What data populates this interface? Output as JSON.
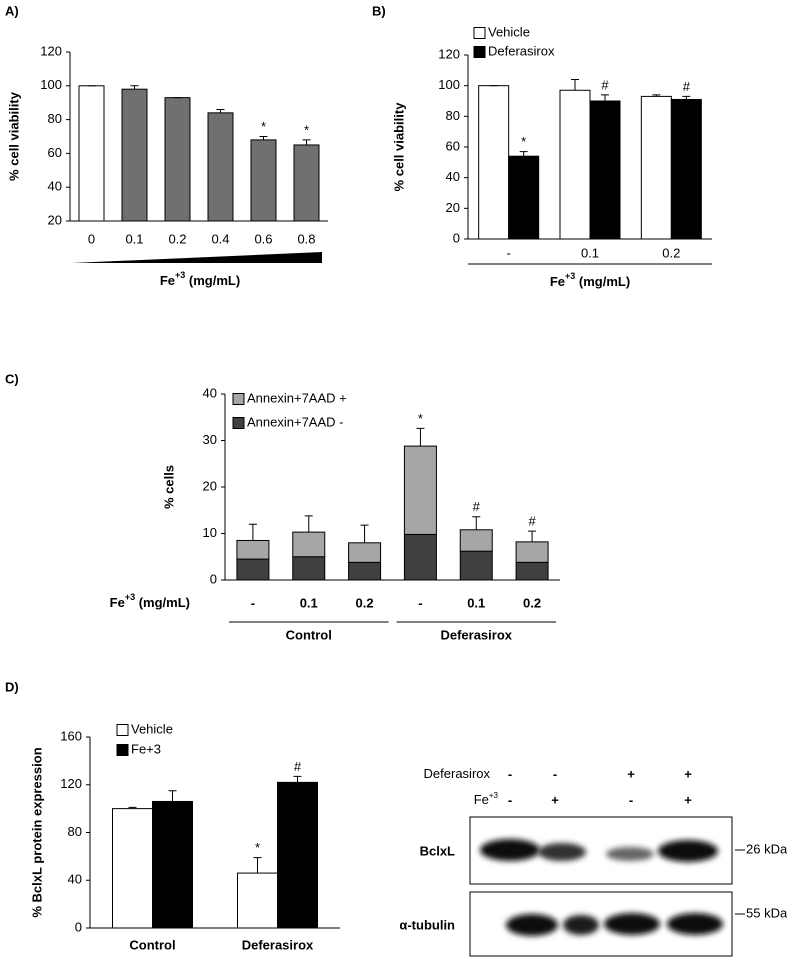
{
  "chart_data": [
    {
      "type": "bar",
      "panel": "A)",
      "y_label": "% cell viability",
      "x_label": [
        "Fe",
        "+3",
        " (mg/mL)"
      ],
      "categories": [
        "0",
        "0.1",
        "0.2",
        "0.4",
        "0.6",
        "0.8"
      ],
      "values": [
        100,
        98,
        93,
        84,
        68,
        65
      ],
      "errors": [
        0,
        2,
        0,
        2,
        2,
        3
      ],
      "annotations": [
        null,
        null,
        null,
        null,
        "*",
        "*"
      ],
      "colors": [
        "#ffffff",
        "#707070",
        "#707070",
        "#707070",
        "#707070",
        "#707070"
      ],
      "ylim": [
        20,
        120
      ],
      "yticks": [
        20,
        40,
        60,
        80,
        100,
        120
      ]
    },
    {
      "type": "grouped_bar",
      "panel": "B)",
      "y_label": "% cell viability",
      "x_label": [
        "Fe",
        "+3",
        " (mg/mL)"
      ],
      "categories": [
        "-",
        "0.1",
        "0.2"
      ],
      "series": [
        {
          "name": "Vehicle",
          "color": "#ffffff",
          "values": [
            100,
            97,
            93
          ],
          "errors": [
            0,
            7,
            1
          ],
          "annotations": [
            null,
            null,
            null
          ]
        },
        {
          "name": "Deferasirox",
          "color": "#000000",
          "values": [
            54,
            90,
            91
          ],
          "errors": [
            3,
            4,
            2
          ],
          "annotations": [
            "*",
            "#",
            "#"
          ]
        }
      ],
      "ylim": [
        0,
        120
      ],
      "yticks": [
        0,
        20,
        40,
        60,
        80,
        100,
        120
      ]
    },
    {
      "type": "stacked_bar",
      "panel": "C)",
      "y_label": "% cells",
      "x_label": [
        "Fe",
        "+3",
        " (mg/mL)"
      ],
      "groups": [
        {
          "name": "Control",
          "categories": [
            "-",
            "0.1",
            "0.2"
          ]
        },
        {
          "name": "Deferasirox",
          "categories": [
            "-",
            "0.1",
            "0.2"
          ]
        }
      ],
      "series": [
        {
          "name": "Annexin+7AAD +",
          "color": "#a6a6a6",
          "values": [
            4,
            5.3,
            4.2,
            19,
            4.6,
            4.4
          ],
          "errors": [
            3.5,
            3.5,
            3.8,
            3.8,
            2.8,
            2.3
          ],
          "annotations": [
            null,
            null,
            null,
            "*",
            "#",
            "#"
          ]
        },
        {
          "name": "Annexin+7AAD -",
          "color": "#404040",
          "values": [
            4.5,
            5,
            3.8,
            9.8,
            6.2,
            3.8
          ],
          "errors": [
            1.5,
            2.5,
            2,
            5,
            2.5,
            1.2
          ]
        }
      ],
      "ylim": [
        0,
        40
      ],
      "yticks": [
        0,
        10,
        20,
        30,
        40
      ]
    },
    {
      "type": "grouped_bar",
      "panel": "D)",
      "y_label": "% BclxL  protein expression",
      "categories": [
        "Control",
        "Deferasirox"
      ],
      "series": [
        {
          "name": "Vehicle",
          "color": "#ffffff",
          "values": [
            100,
            46
          ],
          "errors": [
            1,
            13
          ],
          "annotations": [
            null,
            "*"
          ]
        },
        {
          "name": "Fe+3",
          "color": "#000000",
          "values": [
            106,
            122
          ],
          "errors": [
            9,
            5
          ],
          "annotations": [
            null,
            "#"
          ]
        }
      ],
      "ylim": [
        0,
        160
      ],
      "yticks": [
        0,
        40,
        80,
        120,
        160
      ]
    }
  ],
  "blot": {
    "rows": [
      {
        "label": [
          "Deferasirox"
        ],
        "signs": [
          "-",
          "-",
          "+",
          "+"
        ]
      },
      {
        "label": [
          "Fe",
          "+3"
        ],
        "signs": [
          "-",
          "+",
          "-",
          "+"
        ]
      }
    ],
    "bands": [
      {
        "label": "BclxL",
        "marker": "26 kDa"
      },
      {
        "label": "α-tubulin",
        "marker": "55 kDa"
      }
    ]
  }
}
